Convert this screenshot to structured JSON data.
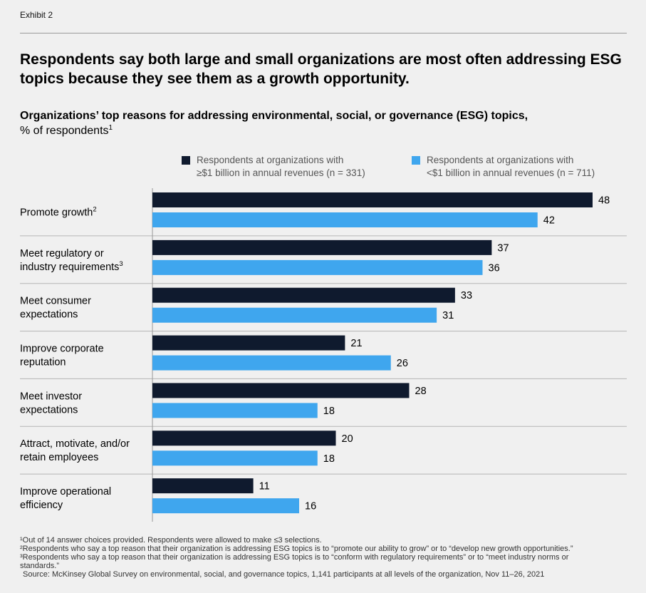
{
  "exhibit": "Exhibit 2",
  "headline": "Respondents say both large and small organizations are most often addressing ESG topics because they see them as a growth opportunity.",
  "subtitle_bold": "Organizations’ top reasons for addressing environmental, social, or governance (ESG) topics,",
  "subtitle_rest": "% of respondents",
  "subtitle_sup": "1",
  "legend": {
    "dark_line1": "Respondents at organizations with",
    "dark_line2": "≥$1 billion in annual revenues (n = 331)",
    "light_line1": "Respondents at organizations with",
    "light_line2": "<$1 billion in annual revenues (n = 711)"
  },
  "colors": {
    "dark": "#0f1a2e",
    "light": "#3fa6ee",
    "grid": "#b5b5b5",
    "axis": "#999999"
  },
  "chart_data": {
    "type": "bar",
    "orientation": "horizontal",
    "title": "Organizations’ top reasons for addressing environmental, social, or governance (ESG) topics, % of respondents",
    "xlim": [
      0,
      50
    ],
    "categories": [
      {
        "lines": [
          "Promote growth"
        ],
        "sup": "2"
      },
      {
        "lines": [
          "Meet regulatory or",
          "industry requirements"
        ],
        "sup": "3"
      },
      {
        "lines": [
          "Meet consumer",
          "expectations"
        ],
        "sup": ""
      },
      {
        "lines": [
          "Improve corporate",
          "reputation"
        ],
        "sup": ""
      },
      {
        "lines": [
          "Meet investor",
          "expectations"
        ],
        "sup": ""
      },
      {
        "lines": [
          "Attract, motivate, and/or",
          "retain employees"
        ],
        "sup": ""
      },
      {
        "lines": [
          "Improve operational",
          "efficiency"
        ],
        "sup": ""
      }
    ],
    "series": [
      {
        "name": "Respondents at organizations with ≥$1 billion in annual revenues (n = 331)",
        "values": [
          48,
          37,
          33,
          21,
          28,
          20,
          11
        ]
      },
      {
        "name": "Respondents at organizations with <$1 billion in annual revenues (n = 711)",
        "values": [
          42,
          36,
          31,
          26,
          18,
          18,
          16
        ]
      }
    ]
  },
  "footnotes": [
    "¹Out of 14 answer choices provided. Respondents were allowed to make ≤3 selections.",
    "²Respondents who say a top reason that their organization is addressing ESG topics is to “promote our ability to grow” or to “develop new growth opportunities.”",
    "³Respondents who say a top reason that their organization is addressing ESG topics is to “conform with regulatory requirements” or to “meet industry norms or",
    "standards.”",
    "Source: McKinsey Global Survey on environmental, social, and governance topics, 1,141 participants at all levels of the organization, Nov 11–26, 2021"
  ]
}
